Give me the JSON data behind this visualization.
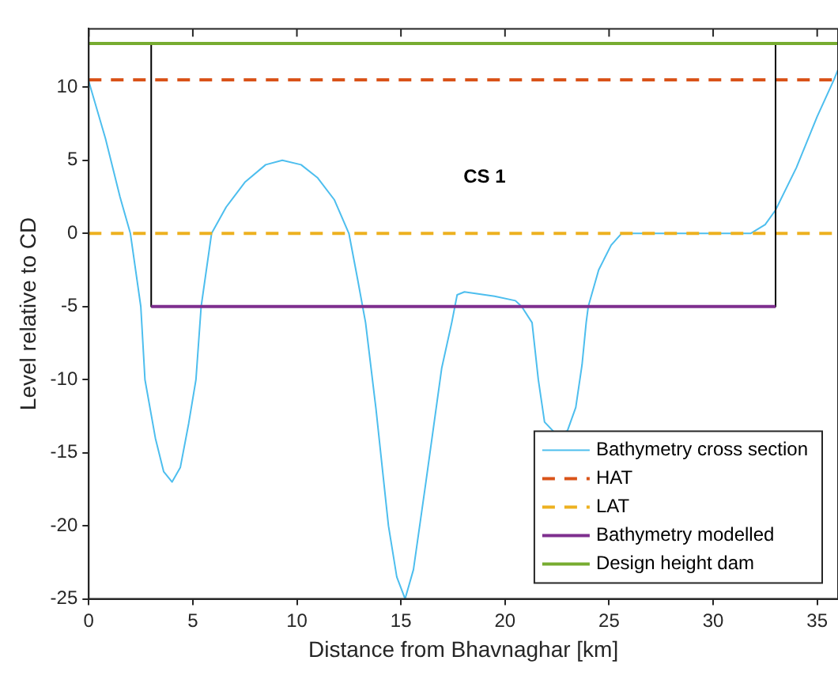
{
  "chart_data": {
    "type": "line",
    "xlabel": "Distance from Bhavnaghar [km]",
    "ylabel": "Level relative to CD",
    "xlim": [
      0,
      36
    ],
    "xticks": [
      0,
      5,
      10,
      15,
      20,
      25,
      30,
      35
    ],
    "ylim": [
      -25,
      14
    ],
    "yticks": [
      -25,
      -20,
      -15,
      -10,
      -5,
      0,
      5,
      10
    ],
    "grid": false,
    "legend": "bottom right",
    "marker": "none",
    "annotations": [
      "CS 1"
    ],
    "series": [
      {
        "name": "Bathymetry cross section",
        "color": "#4dbeee",
        "line_style": "solid",
        "x": [
          0,
          0.8,
          1.5,
          2,
          2.5,
          2.7,
          3.2,
          3.6,
          4,
          4.4,
          4.8,
          5.15,
          5.4,
          5.9,
          6.6,
          7.5,
          8.5,
          9.3,
          10.2,
          11,
          11.8,
          12.5,
          12.9,
          13.3,
          13.8,
          14.4,
          14.8,
          15.2,
          15.6,
          16.2,
          16.96,
          17.44,
          17.7,
          18.05,
          19.5,
          20.5,
          20.8,
          21.3,
          21.6,
          21.9,
          22.5,
          23,
          23.4,
          23.7,
          23.9,
          24,
          24.5,
          25.1,
          25.6,
          31.8,
          32.5,
          33,
          34,
          35,
          35.8,
          36
        ],
        "values": [
          10.4,
          6.5,
          2.5,
          0,
          -5,
          -10,
          -14,
          -16.3,
          -17,
          -16,
          -13,
          -10,
          -5,
          0,
          1.8,
          3.5,
          4.7,
          5,
          4.7,
          3.8,
          2.3,
          0,
          -3,
          -6.1,
          -12,
          -20,
          -23.5,
          -25,
          -23,
          -17,
          -9.2,
          -6.1,
          -4.2,
          -4,
          -4.3,
          -4.6,
          -5,
          -6.1,
          -10,
          -12.9,
          -13.8,
          -13.5,
          -11.9,
          -9,
          -6.1,
          -5,
          -2.5,
          -0.8,
          0,
          0,
          0.6,
          1.6,
          4.5,
          8,
          10.5,
          11.2
        ]
      },
      {
        "name": "HAT",
        "color": "#d95319",
        "line_style": "dashed",
        "x": [
          0,
          36
        ],
        "values": [
          10.5,
          10.5
        ]
      },
      {
        "name": "LAT",
        "color": "#edb120",
        "line_style": "dashed",
        "x": [
          0,
          36
        ],
        "values": [
          0,
          0
        ]
      },
      {
        "color": "#000000",
        "line_style": "solid",
        "x": [
          3,
          3,
          33,
          33
        ],
        "values": [
          13,
          -5,
          -5,
          13
        ]
      },
      {
        "name": "Bathymetry modelled",
        "color": "#7e2f8e",
        "line_style": "solid",
        "x": [
          3,
          33
        ],
        "values": [
          -5,
          -5
        ]
      },
      {
        "name": "Design height dam",
        "color": "#77ac30",
        "line_style": "solid",
        "x": [
          0,
          36
        ],
        "values": [
          13,
          13
        ]
      }
    ]
  }
}
